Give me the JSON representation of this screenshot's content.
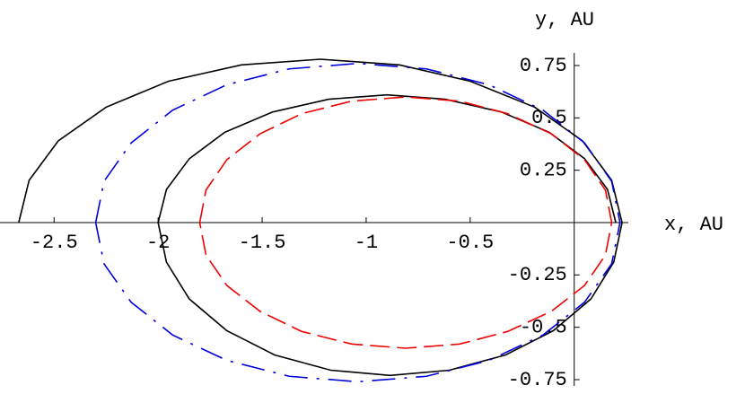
{
  "chart_data": {
    "type": "line",
    "x_label": "x, AU",
    "y_label": "y, AU",
    "xlim": [
      -2.76,
      0.26
    ],
    "ylim": [
      -0.78,
      0.81
    ],
    "xticks": [
      -2.5,
      -2,
      -1.5,
      -1,
      -0.5
    ],
    "yticks": [
      0.75,
      0.5,
      0.25,
      -0.25,
      -0.5,
      -0.75
    ],
    "series": [
      {
        "color": "#000000",
        "line_style": "solid",
        "x": [
          -2.67,
          -2.62,
          -2.48,
          -2.25,
          -1.95,
          -1.6,
          -1.22,
          -0.84,
          -0.5,
          -0.19,
          0.04,
          0.18,
          0.23,
          0.19,
          0.08,
          -0.1,
          -0.33,
          -0.6,
          -0.885,
          -1.17,
          -1.44,
          -1.67,
          -1.85,
          -1.96,
          -2.0,
          -1.96,
          -1.85,
          -1.68,
          -1.45,
          -1.18,
          -0.9,
          -0.62,
          -0.35,
          -0.12,
          0.05,
          0.16,
          0.2
        ],
        "y": [
          0,
          0.202,
          0.39,
          0.551,
          0.675,
          0.753,
          0.78,
          0.753,
          0.675,
          0.551,
          0.39,
          0.202,
          0,
          -0.189,
          -0.365,
          -0.516,
          -0.632,
          -0.705,
          -0.73,
          -0.705,
          -0.632,
          -0.516,
          -0.365,
          -0.189,
          0,
          0.158,
          0.305,
          0.431,
          0.528,
          0.589,
          0.61,
          0.589,
          0.528,
          0.431,
          0.305,
          0.158,
          0
        ]
      },
      {
        "color": "#0000dd",
        "line_style": "dash-dot",
        "x": [
          -2.3,
          -2.26,
          -2.13,
          -1.93,
          -1.67,
          -1.37,
          -1.04,
          -0.71,
          -0.41,
          -0.15,
          0.05,
          0.18,
          0.22,
          0.18,
          0.05,
          -0.15,
          -0.41,
          -0.71,
          -1.04,
          -1.37,
          -1.67,
          -1.93,
          -2.13,
          -2.26,
          -2.3
        ],
        "y": [
          0,
          0.197,
          0.38,
          0.537,
          0.658,
          0.734,
          0.76,
          0.734,
          0.658,
          0.537,
          0.38,
          0.197,
          0,
          -0.197,
          -0.38,
          -0.537,
          -0.658,
          -0.734,
          -0.76,
          -0.734,
          -0.658,
          -0.537,
          -0.38,
          -0.197,
          0
        ]
      },
      {
        "color": "#ee0000",
        "line_style": "dashed",
        "x": [
          -1.8,
          -1.77,
          -1.67,
          -1.51,
          -1.31,
          -1.07,
          -0.81,
          -0.55,
          -0.32,
          -0.11,
          0.05,
          0.15,
          0.18,
          0.15,
          0.05,
          -0.11,
          -0.32,
          -0.55,
          -0.81,
          -1.07,
          -1.31,
          -1.51,
          -1.67,
          -1.77,
          -1.8
        ],
        "y": [
          0,
          0.155,
          0.3,
          0.424,
          0.52,
          0.58,
          0.6,
          0.58,
          0.52,
          0.424,
          0.3,
          0.155,
          0,
          -0.155,
          -0.3,
          -0.424,
          -0.52,
          -0.58,
          -0.6,
          -0.58,
          -0.52,
          -0.424,
          -0.3,
          -0.155,
          0
        ]
      }
    ]
  }
}
